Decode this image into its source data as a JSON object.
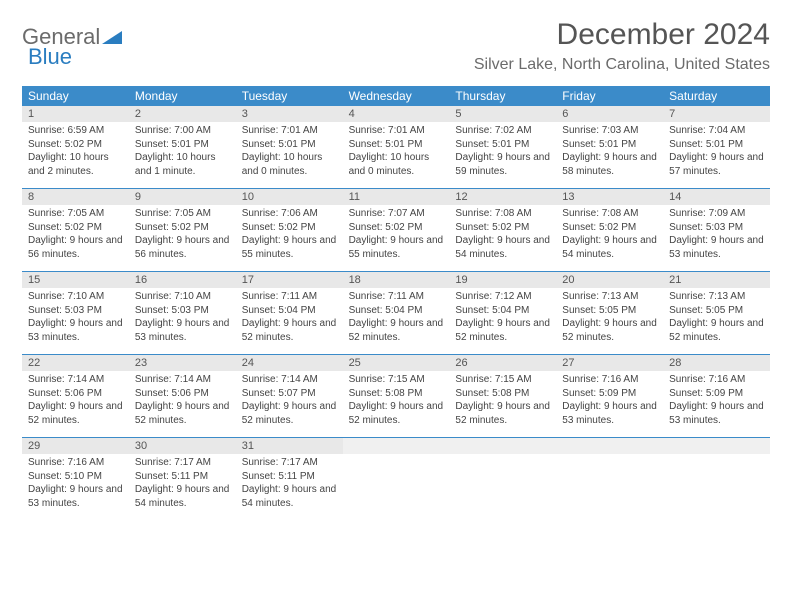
{
  "brand": {
    "part1": "General",
    "part2": "Blue"
  },
  "title": "December 2024",
  "location": "Silver Lake, North Carolina, United States",
  "colors": {
    "header_bg": "#3b8bc9",
    "header_text": "#ffffff",
    "date_bg": "#e8e8e8",
    "border": "#3b8bc9",
    "body_text": "#444444",
    "title_text": "#555555"
  },
  "dayNames": [
    "Sunday",
    "Monday",
    "Tuesday",
    "Wednesday",
    "Thursday",
    "Friday",
    "Saturday"
  ],
  "weeks": [
    [
      {
        "date": "1",
        "sunrise": "Sunrise: 6:59 AM",
        "sunset": "Sunset: 5:02 PM",
        "daylight": "Daylight: 10 hours and 2 minutes."
      },
      {
        "date": "2",
        "sunrise": "Sunrise: 7:00 AM",
        "sunset": "Sunset: 5:01 PM",
        "daylight": "Daylight: 10 hours and 1 minute."
      },
      {
        "date": "3",
        "sunrise": "Sunrise: 7:01 AM",
        "sunset": "Sunset: 5:01 PM",
        "daylight": "Daylight: 10 hours and 0 minutes."
      },
      {
        "date": "4",
        "sunrise": "Sunrise: 7:01 AM",
        "sunset": "Sunset: 5:01 PM",
        "daylight": "Daylight: 10 hours and 0 minutes."
      },
      {
        "date": "5",
        "sunrise": "Sunrise: 7:02 AM",
        "sunset": "Sunset: 5:01 PM",
        "daylight": "Daylight: 9 hours and 59 minutes."
      },
      {
        "date": "6",
        "sunrise": "Sunrise: 7:03 AM",
        "sunset": "Sunset: 5:01 PM",
        "daylight": "Daylight: 9 hours and 58 minutes."
      },
      {
        "date": "7",
        "sunrise": "Sunrise: 7:04 AM",
        "sunset": "Sunset: 5:01 PM",
        "daylight": "Daylight: 9 hours and 57 minutes."
      }
    ],
    [
      {
        "date": "8",
        "sunrise": "Sunrise: 7:05 AM",
        "sunset": "Sunset: 5:02 PM",
        "daylight": "Daylight: 9 hours and 56 minutes."
      },
      {
        "date": "9",
        "sunrise": "Sunrise: 7:05 AM",
        "sunset": "Sunset: 5:02 PM",
        "daylight": "Daylight: 9 hours and 56 minutes."
      },
      {
        "date": "10",
        "sunrise": "Sunrise: 7:06 AM",
        "sunset": "Sunset: 5:02 PM",
        "daylight": "Daylight: 9 hours and 55 minutes."
      },
      {
        "date": "11",
        "sunrise": "Sunrise: 7:07 AM",
        "sunset": "Sunset: 5:02 PM",
        "daylight": "Daylight: 9 hours and 55 minutes."
      },
      {
        "date": "12",
        "sunrise": "Sunrise: 7:08 AM",
        "sunset": "Sunset: 5:02 PM",
        "daylight": "Daylight: 9 hours and 54 minutes."
      },
      {
        "date": "13",
        "sunrise": "Sunrise: 7:08 AM",
        "sunset": "Sunset: 5:02 PM",
        "daylight": "Daylight: 9 hours and 54 minutes."
      },
      {
        "date": "14",
        "sunrise": "Sunrise: 7:09 AM",
        "sunset": "Sunset: 5:03 PM",
        "daylight": "Daylight: 9 hours and 53 minutes."
      }
    ],
    [
      {
        "date": "15",
        "sunrise": "Sunrise: 7:10 AM",
        "sunset": "Sunset: 5:03 PM",
        "daylight": "Daylight: 9 hours and 53 minutes."
      },
      {
        "date": "16",
        "sunrise": "Sunrise: 7:10 AM",
        "sunset": "Sunset: 5:03 PM",
        "daylight": "Daylight: 9 hours and 53 minutes."
      },
      {
        "date": "17",
        "sunrise": "Sunrise: 7:11 AM",
        "sunset": "Sunset: 5:04 PM",
        "daylight": "Daylight: 9 hours and 52 minutes."
      },
      {
        "date": "18",
        "sunrise": "Sunrise: 7:11 AM",
        "sunset": "Sunset: 5:04 PM",
        "daylight": "Daylight: 9 hours and 52 minutes."
      },
      {
        "date": "19",
        "sunrise": "Sunrise: 7:12 AM",
        "sunset": "Sunset: 5:04 PM",
        "daylight": "Daylight: 9 hours and 52 minutes."
      },
      {
        "date": "20",
        "sunrise": "Sunrise: 7:13 AM",
        "sunset": "Sunset: 5:05 PM",
        "daylight": "Daylight: 9 hours and 52 minutes."
      },
      {
        "date": "21",
        "sunrise": "Sunrise: 7:13 AM",
        "sunset": "Sunset: 5:05 PM",
        "daylight": "Daylight: 9 hours and 52 minutes."
      }
    ],
    [
      {
        "date": "22",
        "sunrise": "Sunrise: 7:14 AM",
        "sunset": "Sunset: 5:06 PM",
        "daylight": "Daylight: 9 hours and 52 minutes."
      },
      {
        "date": "23",
        "sunrise": "Sunrise: 7:14 AM",
        "sunset": "Sunset: 5:06 PM",
        "daylight": "Daylight: 9 hours and 52 minutes."
      },
      {
        "date": "24",
        "sunrise": "Sunrise: 7:14 AM",
        "sunset": "Sunset: 5:07 PM",
        "daylight": "Daylight: 9 hours and 52 minutes."
      },
      {
        "date": "25",
        "sunrise": "Sunrise: 7:15 AM",
        "sunset": "Sunset: 5:08 PM",
        "daylight": "Daylight: 9 hours and 52 minutes."
      },
      {
        "date": "26",
        "sunrise": "Sunrise: 7:15 AM",
        "sunset": "Sunset: 5:08 PM",
        "daylight": "Daylight: 9 hours and 52 minutes."
      },
      {
        "date": "27",
        "sunrise": "Sunrise: 7:16 AM",
        "sunset": "Sunset: 5:09 PM",
        "daylight": "Daylight: 9 hours and 53 minutes."
      },
      {
        "date": "28",
        "sunrise": "Sunrise: 7:16 AM",
        "sunset": "Sunset: 5:09 PM",
        "daylight": "Daylight: 9 hours and 53 minutes."
      }
    ],
    [
      {
        "date": "29",
        "sunrise": "Sunrise: 7:16 AM",
        "sunset": "Sunset: 5:10 PM",
        "daylight": "Daylight: 9 hours and 53 minutes."
      },
      {
        "date": "30",
        "sunrise": "Sunrise: 7:17 AM",
        "sunset": "Sunset: 5:11 PM",
        "daylight": "Daylight: 9 hours and 54 minutes."
      },
      {
        "date": "31",
        "sunrise": "Sunrise: 7:17 AM",
        "sunset": "Sunset: 5:11 PM",
        "daylight": "Daylight: 9 hours and 54 minutes."
      },
      {
        "date": "",
        "empty": true
      },
      {
        "date": "",
        "empty": true
      },
      {
        "date": "",
        "empty": true
      },
      {
        "date": "",
        "empty": true
      }
    ]
  ]
}
